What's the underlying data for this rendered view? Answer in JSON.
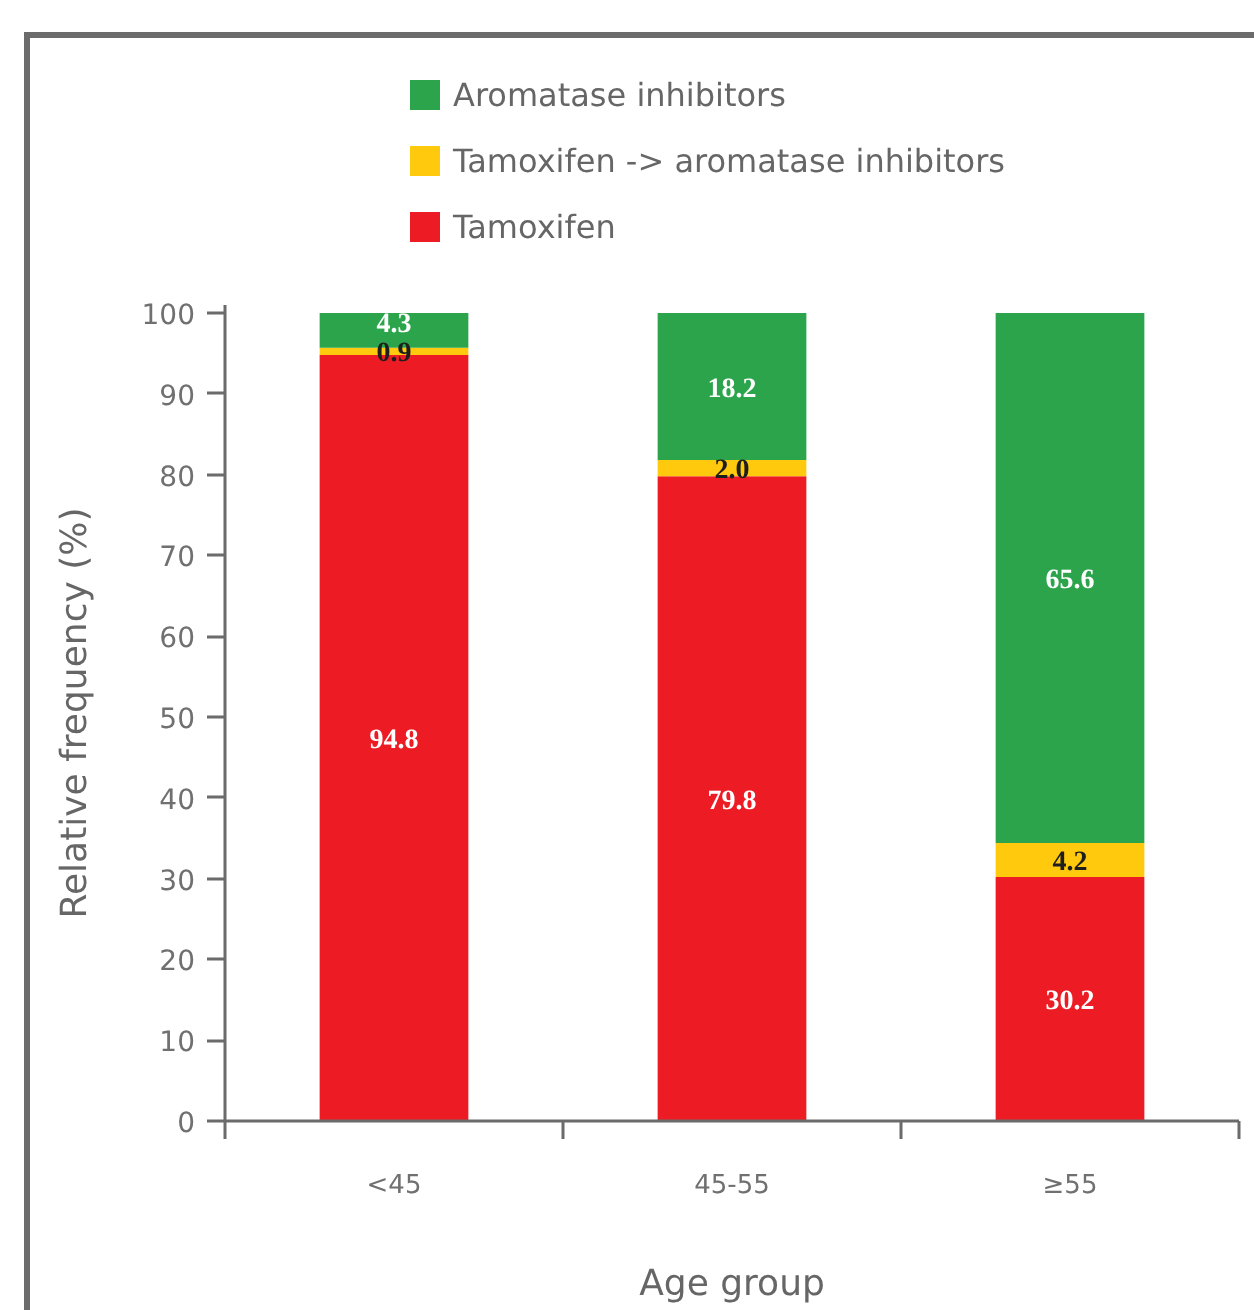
{
  "chart_data": {
    "type": "bar",
    "stacked": true,
    "categories": [
      "<45",
      "45-55",
      "≥55"
    ],
    "series": [
      {
        "name": "Tamoxifen",
        "color": "#ed1c24",
        "values": [
          94.8,
          79.8,
          30.2
        ],
        "value_labels": [
          "94.8",
          "79.8",
          "30.2"
        ]
      },
      {
        "name": "Tamoxifen -> aromatase inhibitors",
        "color": "#ffc90e",
        "values": [
          0.9,
          2.0,
          4.2
        ],
        "value_labels": [
          "0.9",
          "2.0",
          "4.2"
        ]
      },
      {
        "name": "Aromatase inhibitors",
        "color": "#2ba44b",
        "values": [
          4.3,
          18.2,
          65.6
        ],
        "value_labels": [
          "4.3",
          "18.2",
          "65.6"
        ]
      }
    ],
    "xlabel": "Age group",
    "ylabel": "Relative frequency (%)",
    "ylim": [
      0,
      101
    ],
    "yticks": [
      0,
      10,
      20,
      30,
      40,
      50,
      60,
      70,
      80,
      90,
      100
    ],
    "grid": false,
    "legend": "top"
  }
}
